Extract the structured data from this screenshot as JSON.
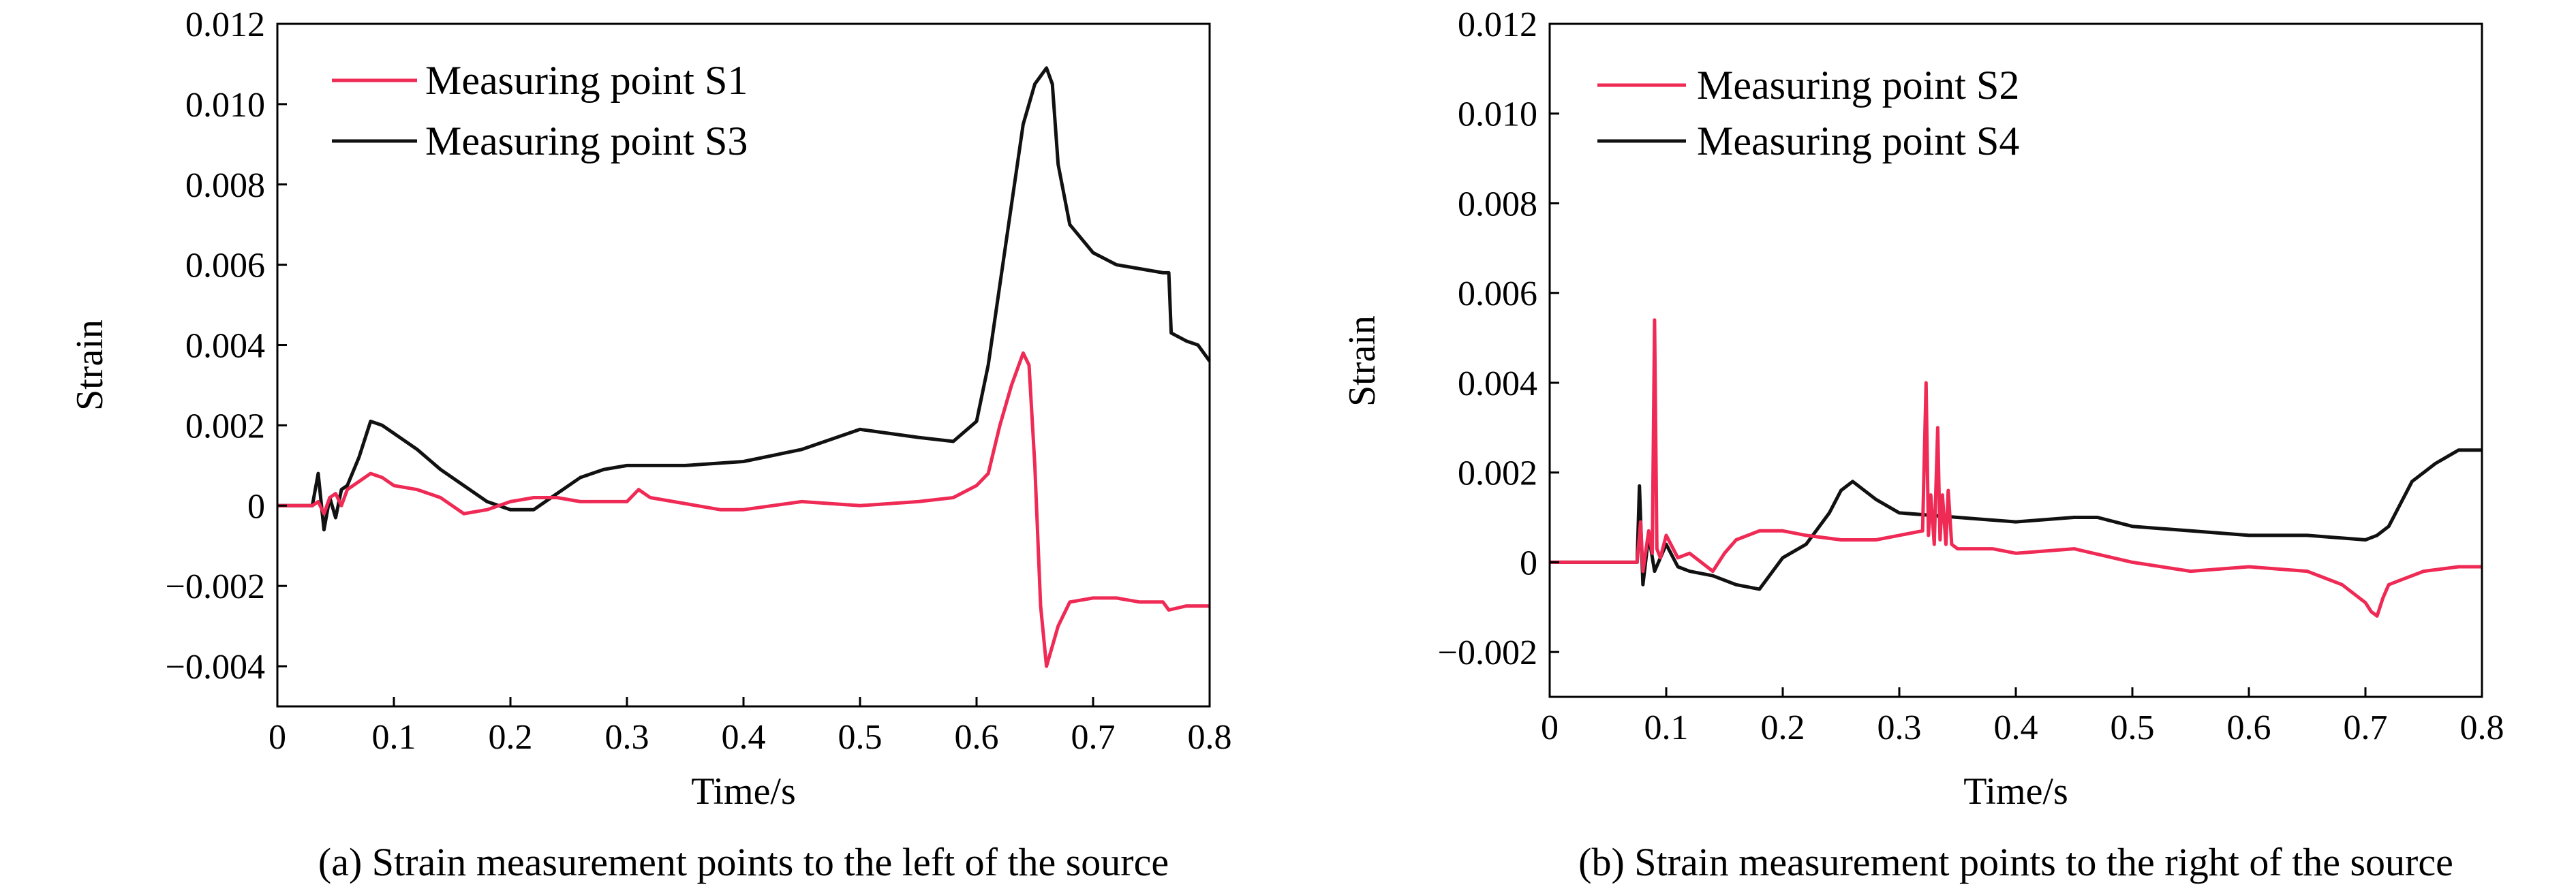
{
  "colors": {
    "series_red": "#ee2a55",
    "series_black": "#111111",
    "axis": "#000000",
    "background": "#ffffff"
  },
  "chart_data": [
    {
      "type": "line",
      "caption": "(a) Strain measurement points to the left of the source",
      "xlabel": "Time/s",
      "ylabel": "Strain",
      "xlim": [
        0,
        0.8
      ],
      "ylim": [
        -0.005,
        0.012
      ],
      "xticks": [
        "0",
        "0.1",
        "0.2",
        "0.3",
        "0.4",
        "0.5",
        "0.6",
        "0.7",
        "0.8"
      ],
      "yticks": [
        "−0.004",
        "−0.002",
        "0",
        "0.002",
        "0.004",
        "0.006",
        "0.008",
        "0.010",
        "0.012"
      ],
      "grid": false,
      "legend_position": "top-left",
      "series": [
        {
          "name": "Measuring point S1",
          "color": "#ee2a55",
          "x": [
            0,
            0.03,
            0.035,
            0.04,
            0.045,
            0.05,
            0.055,
            0.06,
            0.07,
            0.08,
            0.09,
            0.1,
            0.12,
            0.14,
            0.16,
            0.18,
            0.2,
            0.22,
            0.24,
            0.26,
            0.28,
            0.3,
            0.31,
            0.32,
            0.34,
            0.36,
            0.38,
            0.4,
            0.45,
            0.5,
            0.55,
            0.58,
            0.6,
            0.61,
            0.62,
            0.63,
            0.64,
            0.645,
            0.65,
            0.655,
            0.66,
            0.665,
            0.67,
            0.68,
            0.7,
            0.72,
            0.74,
            0.76,
            0.765,
            0.78,
            0.8
          ],
          "y": [
            0,
            0,
            0.0001,
            -0.0002,
            0.0002,
            0.0003,
            0,
            0.0004,
            0.0006,
            0.0008,
            0.0007,
            0.0005,
            0.0004,
            0.0002,
            -0.0002,
            -0.0001,
            0.0001,
            0.0002,
            0.0002,
            0.0001,
            0.0001,
            0.0001,
            0.0004,
            0.0002,
            0.0001,
            0,
            -0.0001,
            -0.0001,
            0.0001,
            0,
            0.0001,
            0.0002,
            0.0005,
            0.0008,
            0.002,
            0.003,
            0.0038,
            0.0035,
            0.001,
            -0.0025,
            -0.004,
            -0.0035,
            -0.003,
            -0.0024,
            -0.0023,
            -0.0023,
            -0.0024,
            -0.0024,
            -0.0026,
            -0.0025,
            -0.0025
          ]
        },
        {
          "name": "Measuring point S3",
          "color": "#111111",
          "x": [
            0,
            0.03,
            0.035,
            0.04,
            0.045,
            0.05,
            0.055,
            0.06,
            0.07,
            0.08,
            0.09,
            0.1,
            0.12,
            0.14,
            0.16,
            0.18,
            0.2,
            0.22,
            0.24,
            0.26,
            0.28,
            0.3,
            0.35,
            0.4,
            0.45,
            0.5,
            0.55,
            0.58,
            0.6,
            0.61,
            0.62,
            0.63,
            0.64,
            0.65,
            0.66,
            0.665,
            0.67,
            0.68,
            0.7,
            0.72,
            0.74,
            0.76,
            0.765,
            0.767,
            0.78,
            0.79,
            0.8
          ],
          "y": [
            0,
            0,
            0.0008,
            -0.0006,
            0.0002,
            -0.0003,
            0.0004,
            0.0005,
            0.0012,
            0.0021,
            0.002,
            0.0018,
            0.0014,
            0.0009,
            0.0005,
            0.0001,
            -0.0001,
            -0.0001,
            0.0003,
            0.0007,
            0.0009,
            0.001,
            0.001,
            0.0011,
            0.0014,
            0.0019,
            0.0017,
            0.0016,
            0.0021,
            0.0035,
            0.0055,
            0.0075,
            0.0095,
            0.0105,
            0.0109,
            0.0105,
            0.0085,
            0.007,
            0.0063,
            0.006,
            0.0059,
            0.0058,
            0.0058,
            0.0043,
            0.0041,
            0.004,
            0.0036
          ]
        }
      ]
    },
    {
      "type": "line",
      "caption": "(b) Strain measurement points to the right of the source",
      "xlabel": "Time/s",
      "ylabel": "Strain",
      "xlim": [
        0,
        0.8
      ],
      "ylim": [
        -0.003,
        0.012
      ],
      "xticks": [
        "0",
        "0.1",
        "0.2",
        "0.3",
        "0.4",
        "0.5",
        "0.6",
        "0.7",
        "0.8"
      ],
      "yticks": [
        "−0.002",
        "0",
        "0.002",
        "0.004",
        "0.006",
        "0.008",
        "0.010",
        "0.012"
      ],
      "grid": false,
      "legend_position": "top-left",
      "series": [
        {
          "name": "Measuring point S2",
          "color": "#ee2a55",
          "x": [
            0,
            0.07,
            0.075,
            0.078,
            0.08,
            0.085,
            0.088,
            0.09,
            0.092,
            0.095,
            0.1,
            0.11,
            0.12,
            0.13,
            0.14,
            0.15,
            0.16,
            0.18,
            0.2,
            0.22,
            0.25,
            0.28,
            0.3,
            0.32,
            0.323,
            0.325,
            0.327,
            0.33,
            0.333,
            0.335,
            0.337,
            0.34,
            0.342,
            0.345,
            0.35,
            0.38,
            0.4,
            0.45,
            0.5,
            0.55,
            0.6,
            0.65,
            0.68,
            0.7,
            0.705,
            0.71,
            0.715,
            0.72,
            0.73,
            0.75,
            0.78,
            0.8
          ],
          "y": [
            0,
            0,
            0,
            0.0009,
            -0.0002,
            0.0007,
            0.0002,
            0.0054,
            0.0003,
            0.0001,
            0.0006,
            0.0001,
            0.0002,
            0,
            -0.0002,
            0.0002,
            0.0005,
            0.0007,
            0.0007,
            0.0006,
            0.0005,
            0.0005,
            0.0006,
            0.0007,
            0.004,
            0.0006,
            0.0015,
            0.0004,
            0.003,
            0.0005,
            0.0015,
            0.0004,
            0.0016,
            0.0004,
            0.0003,
            0.0003,
            0.0002,
            0.0003,
            0,
            -0.0002,
            -0.0001,
            -0.0002,
            -0.0005,
            -0.0009,
            -0.0011,
            -0.0012,
            -0.0008,
            -0.0005,
            -0.0004,
            -0.0002,
            -0.0001,
            -0.0001
          ]
        },
        {
          "name": "Measuring point S4",
          "color": "#111111",
          "x": [
            0,
            0.07,
            0.075,
            0.077,
            0.08,
            0.085,
            0.09,
            0.1,
            0.11,
            0.12,
            0.14,
            0.16,
            0.18,
            0.2,
            0.22,
            0.24,
            0.25,
            0.26,
            0.28,
            0.3,
            0.35,
            0.4,
            0.45,
            0.47,
            0.5,
            0.55,
            0.6,
            0.65,
            0.7,
            0.71,
            0.72,
            0.74,
            0.76,
            0.78,
            0.8
          ],
          "y": [
            0,
            0,
            0,
            0.0017,
            -0.0005,
            0.0006,
            -0.0002,
            0.0004,
            -0.0001,
            -0.0002,
            -0.0003,
            -0.0005,
            -0.0006,
            0.0001,
            0.0004,
            0.0011,
            0.0016,
            0.0018,
            0.0014,
            0.0011,
            0.001,
            0.0009,
            0.001,
            0.001,
            0.0008,
            0.0007,
            0.0006,
            0.0006,
            0.0005,
            0.0006,
            0.0008,
            0.0018,
            0.0022,
            0.0025,
            0.0025
          ]
        }
      ]
    }
  ]
}
